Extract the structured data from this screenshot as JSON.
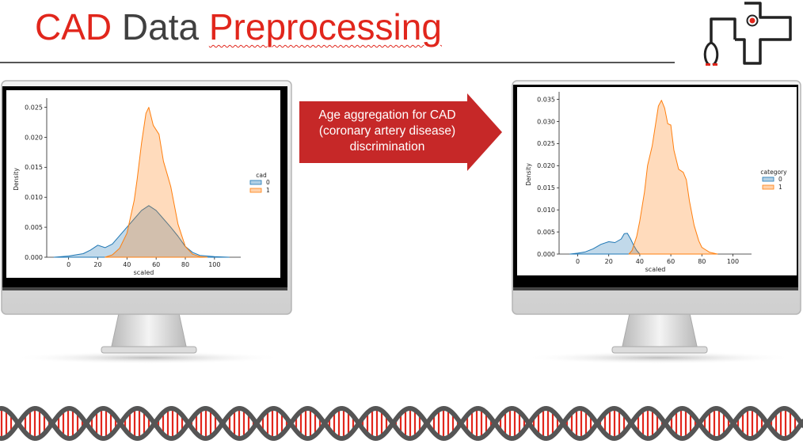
{
  "title": {
    "part1": "CAD",
    "part2": "Data",
    "part3": "Preprocessing"
  },
  "callout": {
    "line1": "Age aggregation  for  CAD",
    "line2": "(coronary artery disease)",
    "line3": "discrimination"
  },
  "colors": {
    "accent_red": "#e1261c",
    "arrow_red": "#c62828",
    "series0": "#1f77b4",
    "series1": "#ff7f0e"
  },
  "chart_data": [
    {
      "type": "area",
      "xlabel": "scaled",
      "ylabel": "Density",
      "xlim": [
        -15,
        118
      ],
      "ylim": [
        0,
        0.026
      ],
      "xticks": [
        0,
        20,
        40,
        60,
        80,
        100
      ],
      "xtick_labels": [
        "0",
        "20",
        "40",
        "60",
        "80",
        "100"
      ],
      "yticks": [
        0,
        0.005,
        0.01,
        0.015,
        0.02,
        0.025
      ],
      "ytick_labels": [
        "0.000",
        "0.005",
        "0.010",
        "0.015",
        "0.020",
        "0.025"
      ],
      "legend_title": "cad",
      "legend_position": "right",
      "series": [
        {
          "name": "0",
          "x": [
            -10,
            0,
            10,
            15,
            20,
            25,
            30,
            35,
            40,
            45,
            50,
            55,
            60,
            65,
            70,
            75,
            80,
            85,
            90,
            100,
            110
          ],
          "y": [
            0,
            0.0002,
            0.0006,
            0.0012,
            0.002,
            0.0016,
            0.0022,
            0.0036,
            0.005,
            0.0064,
            0.0078,
            0.0086,
            0.0078,
            0.0064,
            0.005,
            0.0035,
            0.0018,
            0.0008,
            0.0003,
            0.0001,
            0
          ]
        },
        {
          "name": "1",
          "x": [
            25,
            30,
            35,
            40,
            45,
            47,
            50,
            53,
            55,
            58,
            62,
            65,
            68,
            70,
            75,
            80,
            85,
            90,
            95
          ],
          "y": [
            0,
            0.0004,
            0.0015,
            0.004,
            0.0095,
            0.013,
            0.019,
            0.024,
            0.025,
            0.022,
            0.0205,
            0.016,
            0.0135,
            0.0118,
            0.0055,
            0.0018,
            0.0005,
            0.0001,
            0
          ]
        }
      ]
    },
    {
      "type": "area",
      "xlabel": "scaled",
      "ylabel": "Density",
      "xlim": [
        -12,
        112
      ],
      "ylim": [
        0,
        0.036
      ],
      "xticks": [
        0,
        20,
        40,
        60,
        80,
        100
      ],
      "xtick_labels": [
        "0",
        "20",
        "40",
        "60",
        "80",
        "100"
      ],
      "yticks": [
        0,
        0.005,
        0.01,
        0.015,
        0.02,
        0.025,
        0.03,
        0.035
      ],
      "ytick_labels": [
        "0.000",
        "0.005",
        "0.010",
        "0.015",
        "0.020",
        "0.025",
        "0.030",
        "0.035"
      ],
      "legend_title": "category",
      "legend_position": "right",
      "series": [
        {
          "name": "0",
          "x": [
            -5,
            0,
            5,
            10,
            15,
            20,
            24,
            28,
            30,
            32,
            34,
            36,
            38,
            40
          ],
          "y": [
            0,
            0.0002,
            0.0005,
            0.0012,
            0.0022,
            0.0028,
            0.0026,
            0.0034,
            0.0046,
            0.0047,
            0.0035,
            0.002,
            0.0008,
            0
          ]
        },
        {
          "name": "1",
          "x": [
            33,
            35,
            38,
            40,
            43,
            45,
            48,
            50,
            52,
            54,
            56,
            58,
            60,
            62,
            65,
            68,
            70,
            72,
            75,
            78,
            80,
            85,
            90
          ],
          "y": [
            0,
            0.0008,
            0.004,
            0.0075,
            0.014,
            0.02,
            0.0245,
            0.029,
            0.0335,
            0.0348,
            0.033,
            0.0295,
            0.0292,
            0.0235,
            0.0192,
            0.0185,
            0.0168,
            0.012,
            0.0065,
            0.003,
            0.0015,
            0.0004,
            0
          ]
        }
      ]
    }
  ]
}
